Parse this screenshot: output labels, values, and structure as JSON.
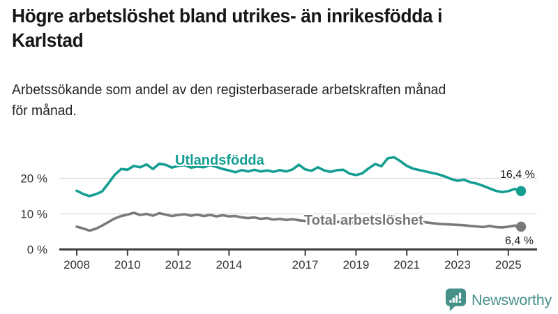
{
  "header": {
    "title": "Högre arbetslöshet bland utrikes- än inrikesfödda i Karlstad",
    "title_lines": [
      "Högre arbetslöshet bland utrikes- än inrikesfödda i",
      "Karlstad"
    ],
    "subtitle": "Arbetssökande som andel av den registerbaserade arbetskraften månad för månad.",
    "subtitle_lines": [
      "Arbetssökande som andel av den registerbaserade arbetskraften månad",
      "för månad."
    ]
  },
  "chart_data": {
    "type": "line",
    "title": "Högre arbetslöshet bland utrikes- än inrikesfödda i Karlstad",
    "subtitle": "Arbetssökande som andel av den registerbaserade arbetskraften månad för månad.",
    "xlabel": "",
    "ylabel": "",
    "xlim": [
      2007.8,
      2026.1
    ],
    "ylim": [
      0,
      27.5
    ],
    "grid": "horizontal",
    "legend_position": "inline-series-labels",
    "x_ticks": [
      2008,
      2010,
      2012,
      2014,
      2017,
      2019,
      2021,
      2023,
      2025
    ],
    "y_ticks": [
      {
        "v": 0,
        "label": "0 %"
      },
      {
        "v": 10,
        "label": "10 %"
      },
      {
        "v": 20,
        "label": "20 %"
      }
    ],
    "x": [
      2008.0,
      2008.25,
      2008.5,
      2008.75,
      2009.0,
      2009.25,
      2009.5,
      2009.75,
      2010.0,
      2010.25,
      2010.5,
      2010.75,
      2011.0,
      2011.25,
      2011.5,
      2011.75,
      2012.0,
      2012.25,
      2012.5,
      2012.75,
      2013.0,
      2013.25,
      2013.5,
      2013.75,
      2014.0,
      2014.25,
      2014.5,
      2014.75,
      2015.0,
      2015.25,
      2015.5,
      2015.75,
      2016.0,
      2016.25,
      2016.5,
      2016.75,
      2017.0,
      2017.25,
      2017.5,
      2017.75,
      2018.0,
      2018.25,
      2018.5,
      2018.75,
      2019.0,
      2019.25,
      2019.5,
      2019.75,
      2020.0,
      2020.25,
      2020.5,
      2020.75,
      2021.0,
      2021.25,
      2021.5,
      2021.75,
      2022.0,
      2022.25,
      2022.5,
      2022.75,
      2023.0,
      2023.25,
      2023.5,
      2023.75,
      2024.0,
      2024.25,
      2024.5,
      2024.75,
      2025.0,
      2025.25,
      2025.5
    ],
    "series": [
      {
        "name": "Utlandsfödda",
        "color": "#149e92",
        "end_value": 16.4,
        "end_label": "16,4 %",
        "values": [
          16.5,
          15.6,
          15.0,
          15.5,
          16.3,
          18.6,
          21.0,
          22.6,
          22.4,
          23.5,
          23.1,
          23.9,
          22.6,
          24.1,
          23.8,
          23.0,
          23.5,
          23.7,
          23.0,
          23.3,
          23.1,
          23.7,
          23.2,
          22.6,
          22.2,
          21.7,
          22.3,
          21.9,
          22.4,
          21.9,
          22.2,
          21.8,
          22.3,
          21.9,
          22.5,
          23.8,
          22.5,
          22.1,
          23.1,
          22.2,
          21.8,
          22.3,
          22.4,
          21.3,
          20.9,
          21.4,
          22.8,
          24.0,
          23.4,
          25.6,
          25.9,
          24.8,
          23.5,
          22.7,
          22.3,
          21.9,
          21.5,
          21.1,
          20.5,
          19.8,
          19.3,
          19.6,
          18.9,
          18.5,
          17.9,
          17.2,
          16.5,
          16.1,
          16.4,
          17.0,
          16.4
        ]
      },
      {
        "name": "Total arbetslöshet",
        "color": "#7a7a7a",
        "end_value": 6.4,
        "end_label": "6,4 %",
        "values": [
          6.4,
          5.9,
          5.3,
          5.8,
          6.7,
          7.7,
          8.7,
          9.4,
          9.8,
          10.3,
          9.7,
          10.0,
          9.5,
          10.2,
          9.8,
          9.4,
          9.7,
          9.9,
          9.5,
          9.8,
          9.4,
          9.7,
          9.3,
          9.6,
          9.3,
          9.4,
          9.0,
          8.8,
          9.0,
          8.6,
          8.8,
          8.4,
          8.6,
          8.3,
          8.5,
          8.2,
          8.0,
          8.2,
          7.9,
          7.8,
          8.0,
          7.7,
          7.9,
          7.5,
          7.6,
          7.4,
          7.7,
          7.9,
          7.8,
          8.9,
          9.2,
          8.9,
          8.5,
          8.2,
          7.9,
          7.6,
          7.4,
          7.2,
          7.1,
          7.0,
          6.9,
          6.8,
          6.6,
          6.5,
          6.3,
          6.6,
          6.3,
          6.2,
          6.4,
          6.7,
          6.4
        ]
      }
    ]
  },
  "footer": {
    "brand": "Newsworthy",
    "logo_icon": "bar-chart-speech-bubble-icon"
  },
  "colors": {
    "accent_teal": "#149e92",
    "series_gray": "#7a7a7a",
    "grid": "#d9d9d9",
    "axis": "#3d3d3d",
    "brand_teal": "#46908a",
    "text": "#161616"
  }
}
